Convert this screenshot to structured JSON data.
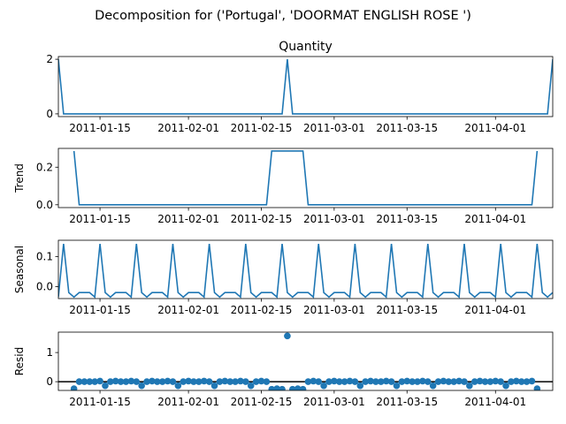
{
  "figure": {
    "suptitle": "Decomposition for ('Portugal', 'DOORMAT ENGLISH ROSE ')"
  },
  "chart_data": [
    {
      "type": "line",
      "title": "Quantity",
      "ylabel": "",
      "x_start": "2011-01-07",
      "x_step_days": 1,
      "xlim": [
        "2011-01-07",
        "2011-04-12"
      ],
      "ylim": [
        -0.1,
        2.1
      ],
      "yticks": [
        0,
        2
      ],
      "xticks": [
        "2011-01-15",
        "2011-02-01",
        "2011-02-15",
        "2011-03-01",
        "2011-03-15",
        "2011-04-01"
      ],
      "color": "#1f77b4",
      "spikes": {
        "indices": [
          0,
          44,
          95
        ],
        "value": 2,
        "base": 0
      },
      "length": 96
    },
    {
      "type": "line",
      "title": "",
      "ylabel": "Trend",
      "xlim": [
        "2011-01-07",
        "2011-04-12"
      ],
      "ylim": [
        -0.015,
        0.3
      ],
      "yticks": [
        0.0,
        0.2
      ],
      "xticks": [
        "2011-01-15",
        "2011-02-01",
        "2011-02-15",
        "2011-03-01",
        "2011-03-15",
        "2011-04-01"
      ],
      "color": "#1f77b4",
      "segments": [
        {
          "from": 3,
          "to": 92,
          "base": 0,
          "plateau": {
            "start": 41,
            "end": 47,
            "value": 0.286
          },
          "edge_value": 0.286
        }
      ]
    },
    {
      "type": "line",
      "title": "",
      "ylabel": "Seasonal",
      "xlim": [
        "2011-01-07",
        "2011-04-12"
      ],
      "ylim": [
        -0.04,
        0.155
      ],
      "yticks": [
        0.0,
        0.1
      ],
      "xticks": [
        "2011-01-15",
        "2011-02-01",
        "2011-02-15",
        "2011-03-01",
        "2011-03-15",
        "2011-04-01"
      ],
      "color": "#1f77b4",
      "period": 7,
      "pattern": [
        0.143,
        -0.02,
        -0.035,
        -0.02,
        -0.02,
        -0.02,
        -0.035
      ],
      "phase": 1
    },
    {
      "type": "scatter",
      "title": "",
      "ylabel": "Resid",
      "xlim": [
        "2011-01-07",
        "2011-04-12"
      ],
      "ylim": [
        -0.3,
        1.7
      ],
      "yticks": [
        0,
        1
      ],
      "xticks": [
        "2011-01-15",
        "2011-02-01",
        "2011-02-15",
        "2011-03-01",
        "2011-03-15",
        "2011-04-01"
      ],
      "color": "#1f77b4",
      "zero_line": true,
      "points": [
        [
          3,
          -0.24
        ],
        [
          4,
          0.0
        ],
        [
          5,
          0.0
        ],
        [
          6,
          0.0
        ],
        [
          7,
          0.0
        ],
        [
          8,
          0.02
        ],
        [
          9,
          -0.14
        ],
        [
          10,
          0.0
        ],
        [
          11,
          0.02
        ],
        [
          12,
          0.0
        ],
        [
          13,
          0.0
        ],
        [
          14,
          0.02
        ],
        [
          15,
          0.0
        ],
        [
          16,
          -0.14
        ],
        [
          17,
          0.0
        ],
        [
          18,
          0.02
        ],
        [
          19,
          0.0
        ],
        [
          20,
          0.0
        ],
        [
          21,
          0.02
        ],
        [
          22,
          0.0
        ],
        [
          23,
          -0.14
        ],
        [
          24,
          0.0
        ],
        [
          25,
          0.02
        ],
        [
          26,
          0.0
        ],
        [
          27,
          0.0
        ],
        [
          28,
          0.02
        ],
        [
          29,
          0.0
        ],
        [
          30,
          -0.14
        ],
        [
          31,
          0.0
        ],
        [
          32,
          0.02
        ],
        [
          33,
          0.0
        ],
        [
          34,
          0.0
        ],
        [
          35,
          0.02
        ],
        [
          36,
          0.0
        ],
        [
          37,
          -0.14
        ],
        [
          38,
          0.0
        ],
        [
          39,
          0.02
        ],
        [
          40,
          0.0
        ],
        [
          41,
          -0.26
        ],
        [
          42,
          -0.24
        ],
        [
          43,
          -0.26
        ],
        [
          44,
          1.57
        ],
        [
          45,
          -0.26
        ],
        [
          46,
          -0.24
        ],
        [
          47,
          -0.26
        ],
        [
          48,
          0.0
        ],
        [
          49,
          0.02
        ],
        [
          50,
          0.0
        ],
        [
          51,
          -0.14
        ],
        [
          52,
          0.0
        ],
        [
          53,
          0.02
        ],
        [
          54,
          0.0
        ],
        [
          55,
          0.0
        ],
        [
          56,
          0.02
        ],
        [
          57,
          0.0
        ],
        [
          58,
          -0.14
        ],
        [
          59,
          0.0
        ],
        [
          60,
          0.02
        ],
        [
          61,
          0.0
        ],
        [
          62,
          0.0
        ],
        [
          63,
          0.02
        ],
        [
          64,
          0.0
        ],
        [
          65,
          -0.14
        ],
        [
          66,
          0.0
        ],
        [
          67,
          0.02
        ],
        [
          68,
          0.0
        ],
        [
          69,
          0.0
        ],
        [
          70,
          0.02
        ],
        [
          71,
          0.0
        ],
        [
          72,
          -0.14
        ],
        [
          73,
          0.0
        ],
        [
          74,
          0.02
        ],
        [
          75,
          0.0
        ],
        [
          76,
          0.0
        ],
        [
          77,
          0.02
        ],
        [
          78,
          0.0
        ],
        [
          79,
          -0.14
        ],
        [
          80,
          0.0
        ],
        [
          81,
          0.02
        ],
        [
          82,
          0.0
        ],
        [
          83,
          0.0
        ],
        [
          84,
          0.02
        ],
        [
          85,
          0.0
        ],
        [
          86,
          -0.14
        ],
        [
          87,
          0.0
        ],
        [
          88,
          0.02
        ],
        [
          89,
          0.0
        ],
        [
          90,
          0.0
        ],
        [
          91,
          0.02
        ],
        [
          92,
          -0.24
        ]
      ]
    }
  ]
}
